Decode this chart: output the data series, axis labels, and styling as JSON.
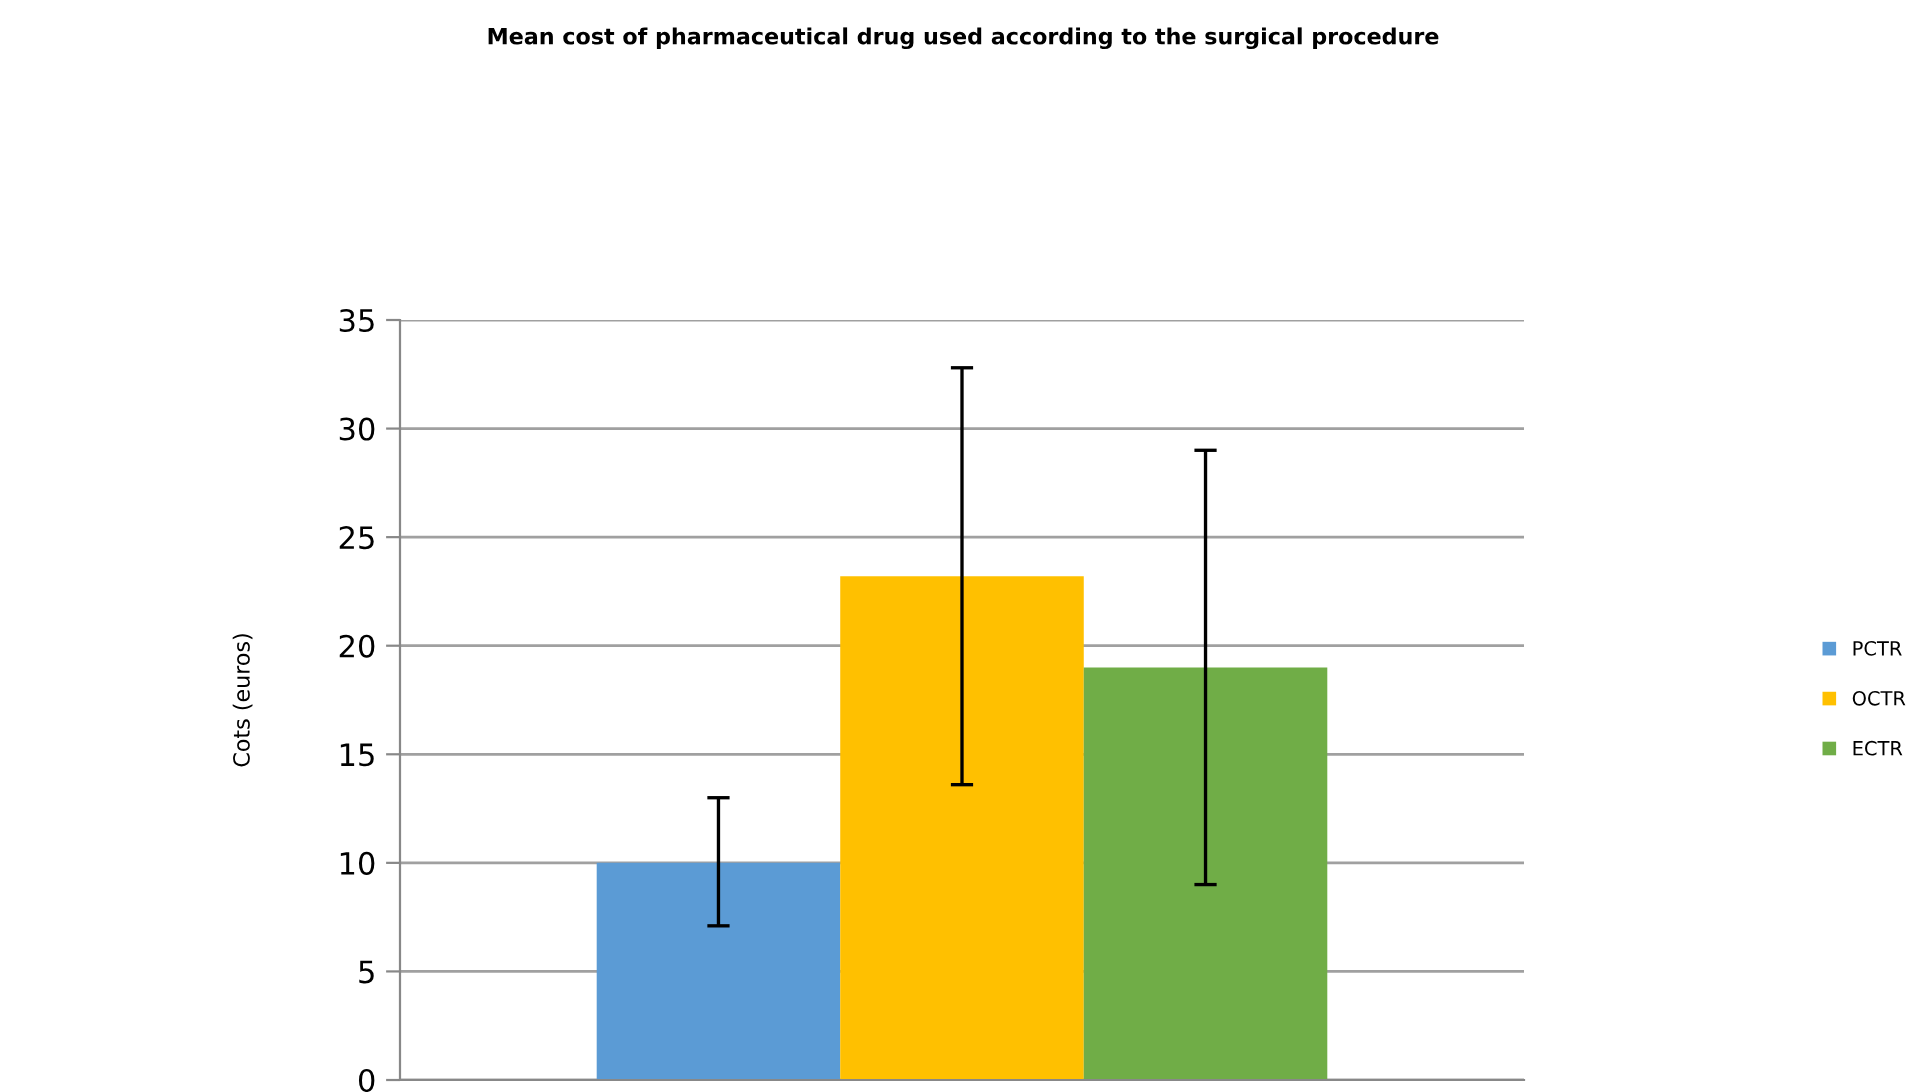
{
  "chart_data": {
    "type": "bar",
    "title": "Mean cost of pharmaceutical drug used according to the surgical procedure",
    "ylabel": "Cots (euros)",
    "categories": [
      null
    ],
    "series": [
      {
        "name": "PCTR",
        "color": "#5b9bd5",
        "values": [
          10.0
        ],
        "errors": [
          [
            7.1,
            13.0
          ]
        ]
      },
      {
        "name": "OCTR",
        "color": "#ffc000",
        "values": [
          23.2
        ],
        "errors": [
          [
            13.6,
            32.8
          ]
        ]
      },
      {
        "name": "ECTR",
        "color": "#70ad47",
        "values": [
          19.0
        ],
        "errors": [
          [
            9.0,
            29.0
          ]
        ]
      }
    ],
    "ylim": [
      0,
      35
    ],
    "yticks": [
      0,
      5,
      10,
      15,
      20,
      25,
      30,
      35
    ],
    "grid": "y",
    "legend": "right"
  }
}
